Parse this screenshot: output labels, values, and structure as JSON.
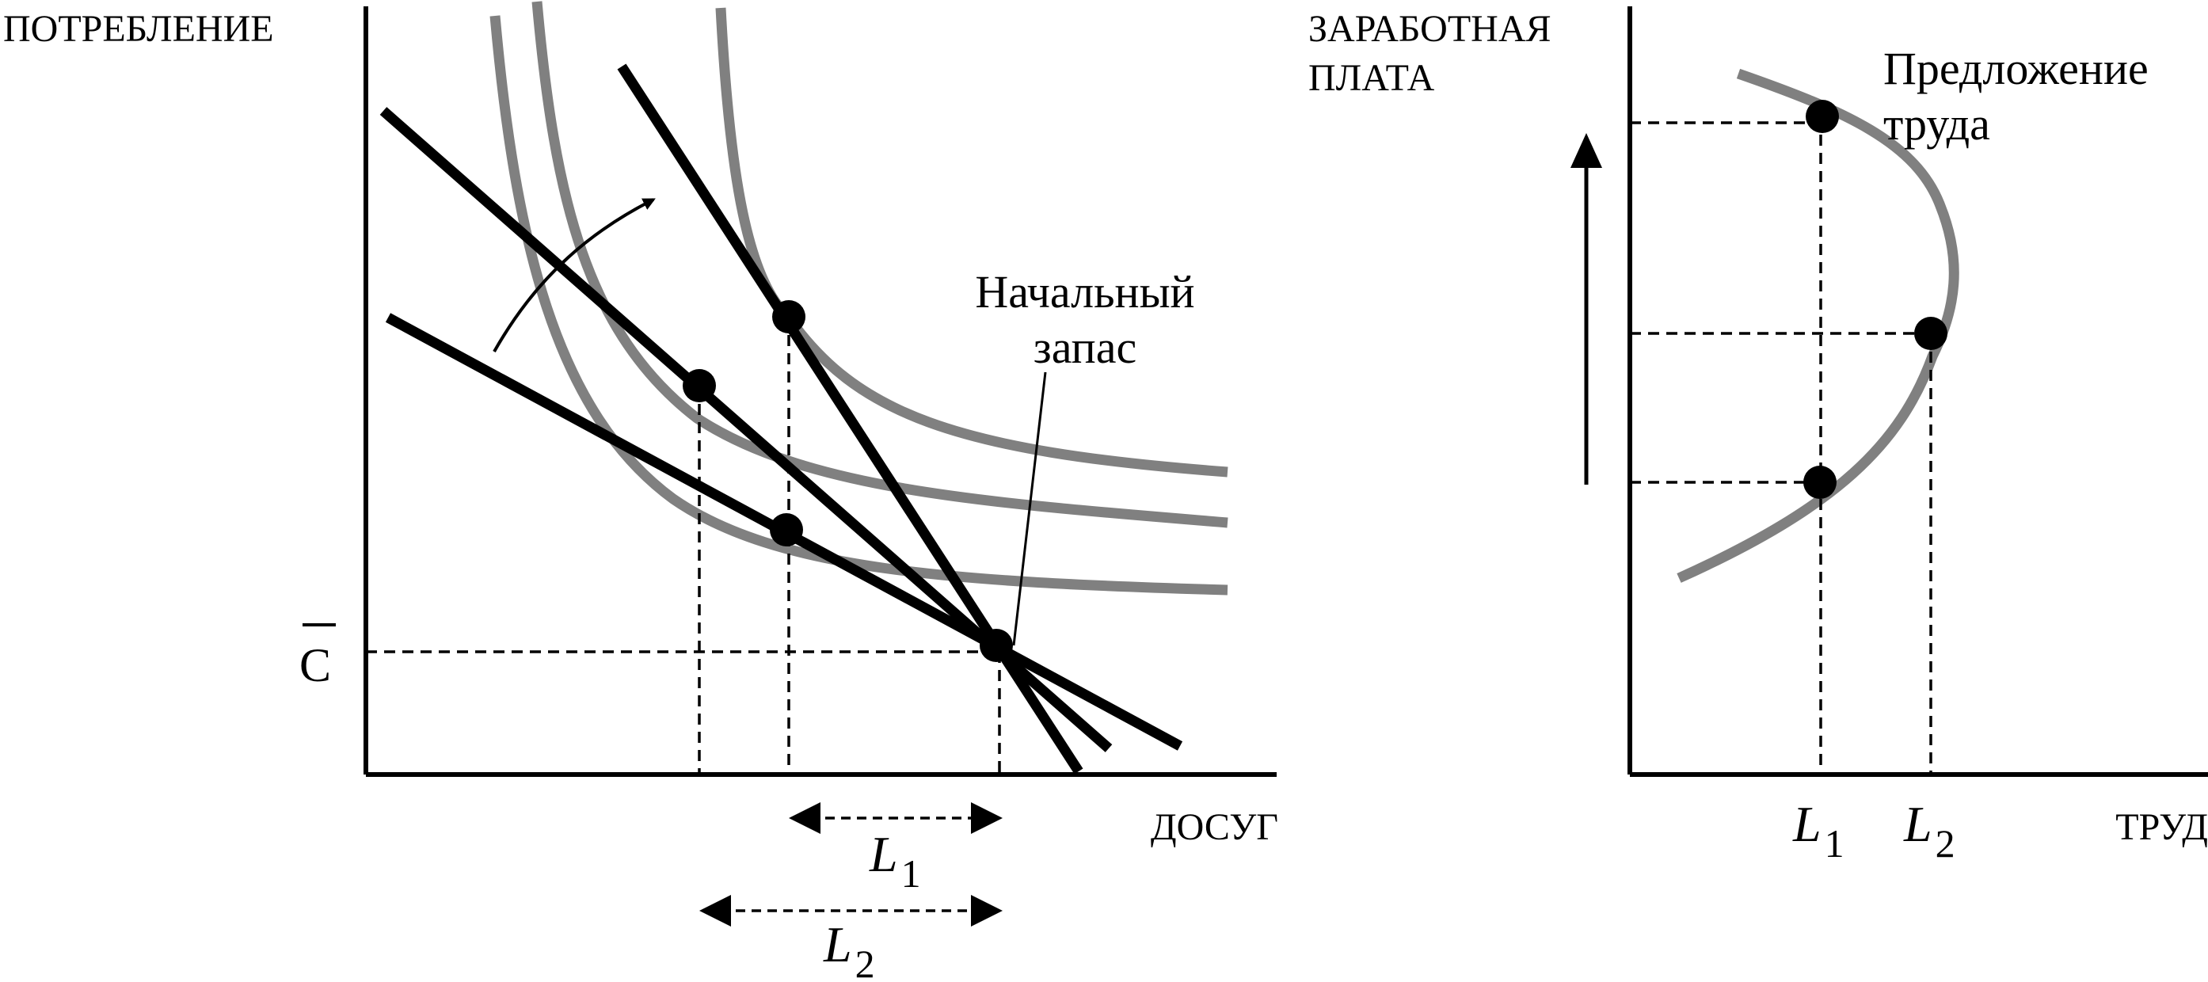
{
  "left_panel": {
    "y_axis_label": "ПОТРЕБЛЕНИЕ",
    "x_axis_label": "ДОСУГ",
    "c_bar_label": "C",
    "endowment_label_line1": "Начальный",
    "endowment_label_line2": "запас",
    "interval_1": {
      "var": "L",
      "sub": "1"
    },
    "interval_2": {
      "var": "L",
      "sub": "2"
    }
  },
  "right_panel": {
    "y_axis_label_line1": "ЗАРАБОТНАЯ",
    "y_axis_label_line2": "ПЛАТА",
    "x_axis_label": "ТРУД",
    "curve_label_line1": "Предложение",
    "curve_label_line2": "труда",
    "tick_1": {
      "var": "L",
      "sub": "1"
    },
    "tick_2": {
      "var": "L",
      "sub": "2"
    }
  },
  "colors": {
    "axes": "#000000",
    "budget_lines": "#000000",
    "indifference_curves": "#808080",
    "supply_curve": "#808080",
    "points": "#000000"
  }
}
